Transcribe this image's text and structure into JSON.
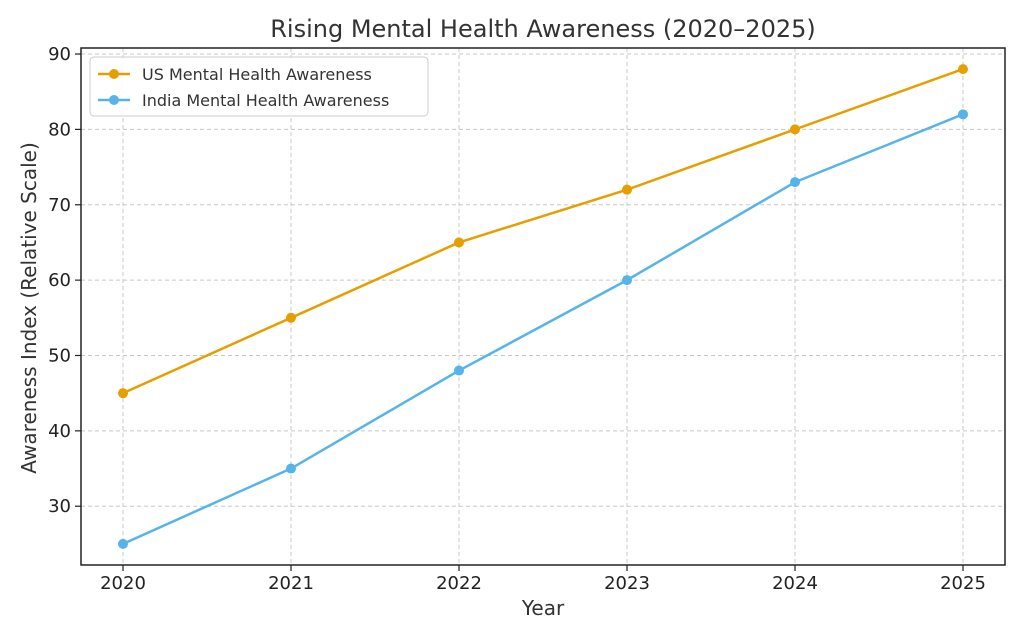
{
  "chart_data": {
    "type": "line",
    "title": "Rising Mental Health Awareness (2020–2025)",
    "xlabel": "Year",
    "ylabel": "Awareness Index (Relative Scale)",
    "x": [
      2020,
      2021,
      2022,
      2023,
      2024,
      2025
    ],
    "x_tick_labels": [
      "2020",
      "2021",
      "2022",
      "2023",
      "2024",
      "2025"
    ],
    "xlim": [
      2019.75,
      2025.25
    ],
    "ylim": [
      22.2,
      90.8
    ],
    "y_ticks": [
      30,
      40,
      50,
      60,
      70,
      80,
      90
    ],
    "y_tick_labels": [
      "30",
      "40",
      "50",
      "60",
      "70",
      "80",
      "90"
    ],
    "grid": true,
    "legend_position": "top-left",
    "series": [
      {
        "name": "US Mental Health Awareness",
        "values": [
          45,
          55,
          65,
          72,
          80,
          88
        ],
        "color": "#E69F00",
        "marker": "circle"
      },
      {
        "name": "India Mental Health Awareness",
        "values": [
          25,
          35,
          48,
          60,
          73,
          82
        ],
        "color": "#56B4E9",
        "marker": "circle"
      }
    ]
  }
}
